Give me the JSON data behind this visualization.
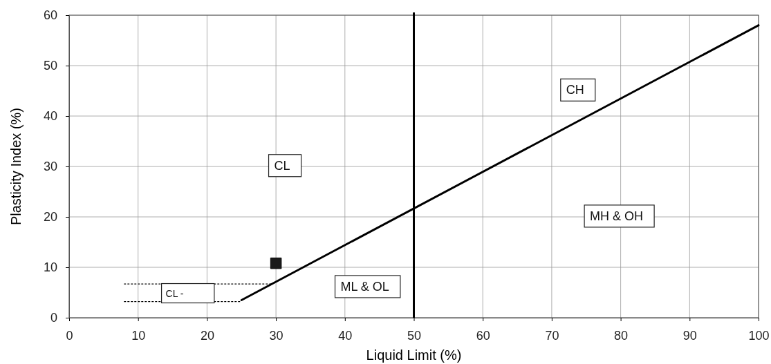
{
  "chart_data": {
    "type": "line",
    "xlabel": "Liquid Limit (%)",
    "ylabel": "Plasticity Index (%)",
    "xlim": [
      0,
      100
    ],
    "xticks": [
      0,
      10,
      20,
      30,
      40,
      50,
      60,
      70,
      80,
      90,
      100
    ],
    "ylim": [
      0,
      60
    ],
    "yticks": [
      0,
      10,
      20,
      30,
      40,
      50,
      60
    ],
    "grid": true,
    "series": [
      {
        "color": "#000000",
        "line_style": "solid",
        "marker": "none",
        "x": [
          25,
          100
        ],
        "values": [
          3.5,
          58
        ]
      },
      {
        "color": "#000000",
        "line_style": "dotted",
        "marker": "none",
        "x": [
          8,
          29.5
        ],
        "values": [
          6.7,
          6.7
        ]
      },
      {
        "color": "#000000",
        "line_style": "dotted",
        "marker": "none",
        "x": [
          8,
          25
        ],
        "values": [
          3.2,
          3.2
        ]
      },
      {
        "type": "scatter",
        "color": "#1a1a1a",
        "marker": "square",
        "x": [
          30
        ],
        "values": [
          10.8
        ]
      }
    ],
    "ref_lines": [
      {
        "axis": "x",
        "value": 50,
        "color": "#000000",
        "line_style": "solid"
      }
    ],
    "annotations": [
      "CL",
      "CH",
      "MH & OH",
      "ML & OL",
      "CL -"
    ]
  }
}
